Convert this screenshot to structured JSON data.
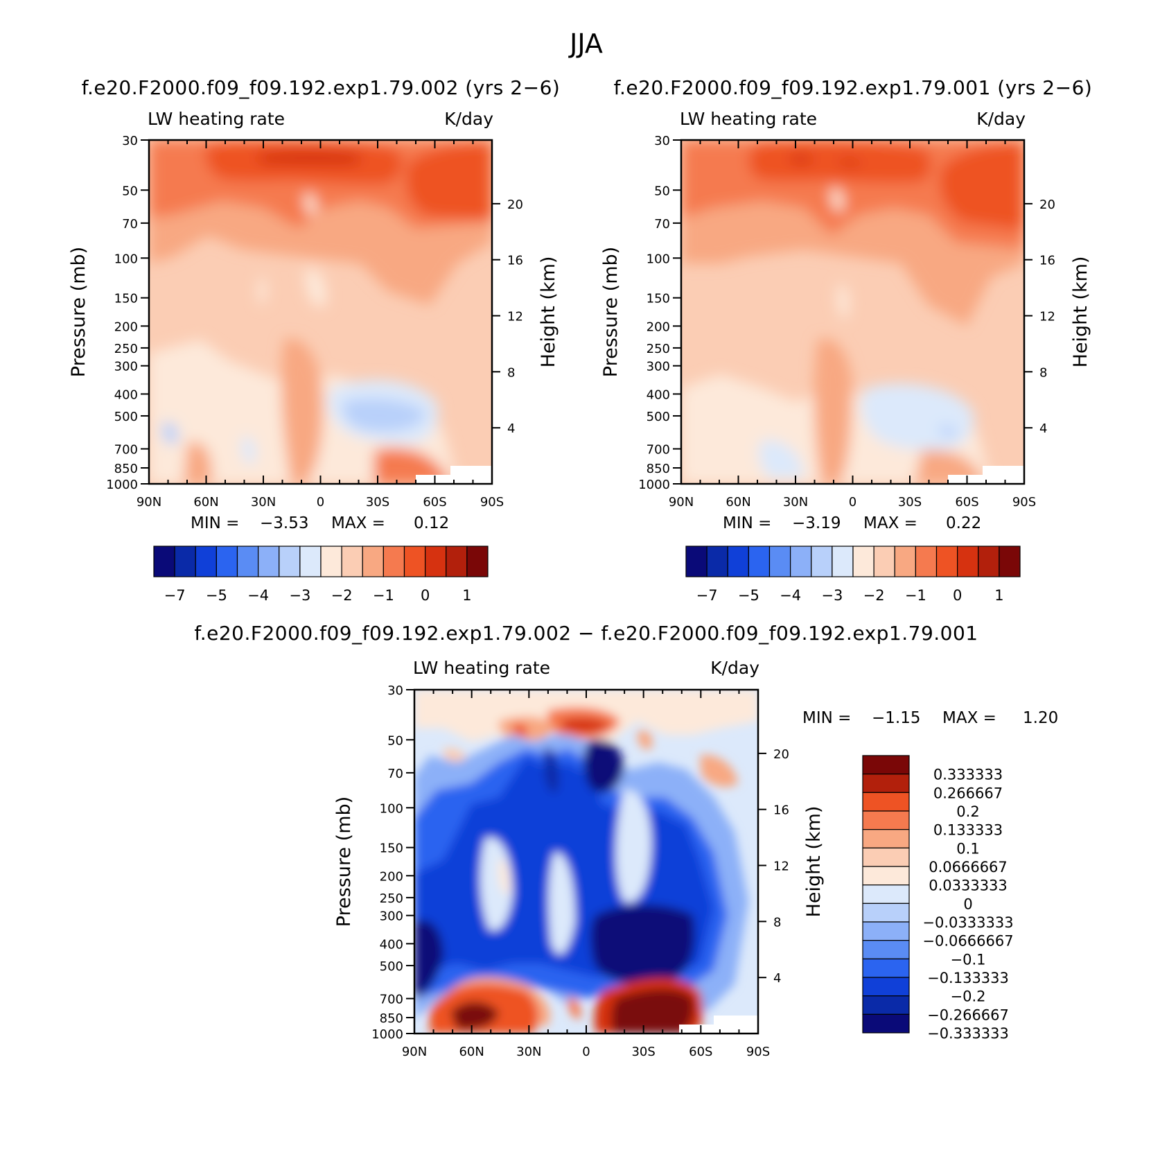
{
  "figure_title": "JJA",
  "chart_data": [
    {
      "type": "heatmap",
      "title": "f.e20.F2000.f09_f09.192.exp1.79.002 (yrs 2−6)",
      "left_label": "LW heating rate",
      "right_label": "K/day",
      "ylabel": "Pressure (mb)",
      "ylabel_right": "Height (km)",
      "x_ticks": [
        "90N",
        "60N",
        "30N",
        "0",
        "30S",
        "60S",
        "90S"
      ],
      "y_ticks": [
        "30",
        "50",
        "70",
        "100",
        "150",
        "200",
        "250",
        "300",
        "400",
        "500",
        "700",
        "850",
        "1000"
      ],
      "y_ticks_right": [
        "20",
        "16",
        "12",
        "8",
        "4"
      ],
      "ylim": [
        1000,
        30
      ],
      "y_scale": "log",
      "min_text": "MIN =",
      "min_value": "−3.53",
      "max_text": "MAX =",
      "max_value": "0.12",
      "colorbar": {
        "orientation": "horizontal",
        "labels": [
          "−7",
          "−5",
          "−4",
          "−3",
          "−2",
          "−1",
          "0",
          "1"
        ],
        "colors": [
          "#0a0a78",
          "#0a2aa8",
          "#1040d8",
          "#2b64f0",
          "#5a8cf4",
          "#8cb0f8",
          "#b8d0fa",
          "#dce9fb",
          "#fde9da",
          "#fbcdb4",
          "#f8a882",
          "#f57a4f",
          "#ee5324",
          "#d63210",
          "#b2200c",
          "#7a0707"
        ]
      }
    },
    {
      "type": "heatmap",
      "title": "f.e20.F2000.f09_f09.192.exp1.79.001 (yrs 2−6)",
      "left_label": "LW heating rate",
      "right_label": "K/day",
      "ylabel": "Pressure (mb)",
      "ylabel_right": "Height (km)",
      "x_ticks": [
        "90N",
        "60N",
        "30N",
        "0",
        "30S",
        "60S",
        "90S"
      ],
      "y_ticks": [
        "30",
        "50",
        "70",
        "100",
        "150",
        "200",
        "250",
        "300",
        "400",
        "500",
        "700",
        "850",
        "1000"
      ],
      "y_ticks_right": [
        "20",
        "16",
        "12",
        "8",
        "4"
      ],
      "ylim": [
        1000,
        30
      ],
      "y_scale": "log",
      "min_text": "MIN =",
      "min_value": "−3.19",
      "max_text": "MAX =",
      "max_value": "0.22",
      "colorbar": {
        "orientation": "horizontal",
        "labels": [
          "−7",
          "−5",
          "−4",
          "−3",
          "−2",
          "−1",
          "0",
          "1"
        ],
        "colors": [
          "#0a0a78",
          "#0a2aa8",
          "#1040d8",
          "#2b64f0",
          "#5a8cf4",
          "#8cb0f8",
          "#b8d0fa",
          "#dce9fb",
          "#fde9da",
          "#fbcdb4",
          "#f8a882",
          "#f57a4f",
          "#ee5324",
          "#d63210",
          "#b2200c",
          "#7a0707"
        ]
      }
    },
    {
      "type": "heatmap",
      "title": "f.e20.F2000.f09_f09.192.exp1.79.002 − f.e20.F2000.f09_f09.192.exp1.79.001",
      "left_label": "LW heating rate",
      "right_label": "K/day",
      "ylabel": "Pressure (mb)",
      "ylabel_right": "Height (km)",
      "x_ticks": [
        "90N",
        "60N",
        "30N",
        "0",
        "30S",
        "60S",
        "90S"
      ],
      "y_ticks": [
        "30",
        "50",
        "70",
        "100",
        "150",
        "200",
        "250",
        "300",
        "400",
        "500",
        "700",
        "850",
        "1000"
      ],
      "y_ticks_right": [
        "20",
        "16",
        "12",
        "8",
        "4"
      ],
      "ylim": [
        1000,
        30
      ],
      "y_scale": "log",
      "min_text": "MIN =",
      "min_value": "−1.15",
      "max_text": "MAX =",
      "max_value": "1.20",
      "colorbar": {
        "orientation": "vertical",
        "labels": [
          "0.333333",
          "0.266667",
          "0.2",
          "0.133333",
          "0.1",
          "0.0666667",
          "0.0333333",
          "0",
          "−0.0333333",
          "−0.0666667",
          "−0.1",
          "−0.133333",
          "−0.2",
          "−0.266667",
          "−0.333333"
        ],
        "colors": [
          "#7a0707",
          "#b2200c",
          "#ee5324",
          "#f57a4f",
          "#f8a882",
          "#fbcdb4",
          "#fde9da",
          "#dce9fb",
          "#b8d0fa",
          "#8cb0f8",
          "#5a8cf4",
          "#2b64f0",
          "#1040d8",
          "#0a2aa8",
          "#0a0a78"
        ]
      }
    }
  ]
}
